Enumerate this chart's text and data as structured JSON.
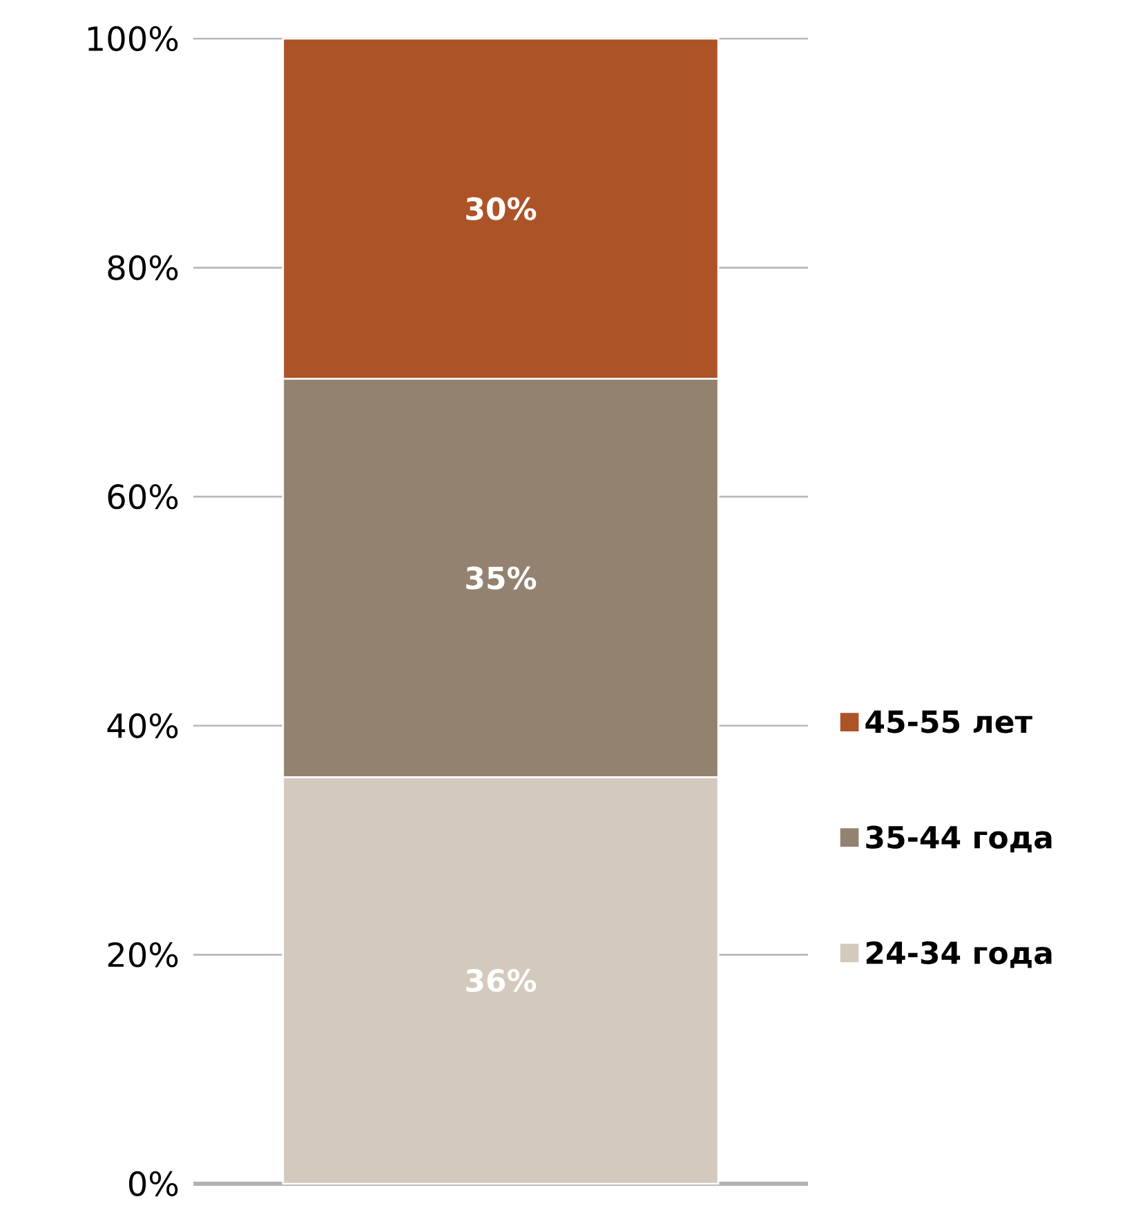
{
  "chart_data": {
    "type": "bar",
    "stacked": true,
    "categories": [
      null
    ],
    "series": [
      {
        "name": "24-34 года",
        "color": "#d3cabd",
        "values": [
          35.5
        ],
        "value_labels": [
          "36%"
        ]
      },
      {
        "name": "35-44 года",
        "color": "#948270",
        "values": [
          34.8
        ],
        "value_labels": [
          "35%"
        ]
      },
      {
        "name": "45-55 лет",
        "color": "#ad5328",
        "values": [
          29.7
        ],
        "value_labels": [
          "30%"
        ]
      }
    ],
    "ylim": [
      0,
      100
    ],
    "yticks": [
      {
        "value": 0,
        "label": "0%"
      },
      {
        "value": 20,
        "label": "20%"
      },
      {
        "value": 40,
        "label": "40%"
      },
      {
        "value": 60,
        "label": "60%"
      },
      {
        "value": 80,
        "label": "80%"
      },
      {
        "value": 100,
        "label": "100%"
      }
    ],
    "grid": "y",
    "legend": "right",
    "tick_labels": "y"
  }
}
